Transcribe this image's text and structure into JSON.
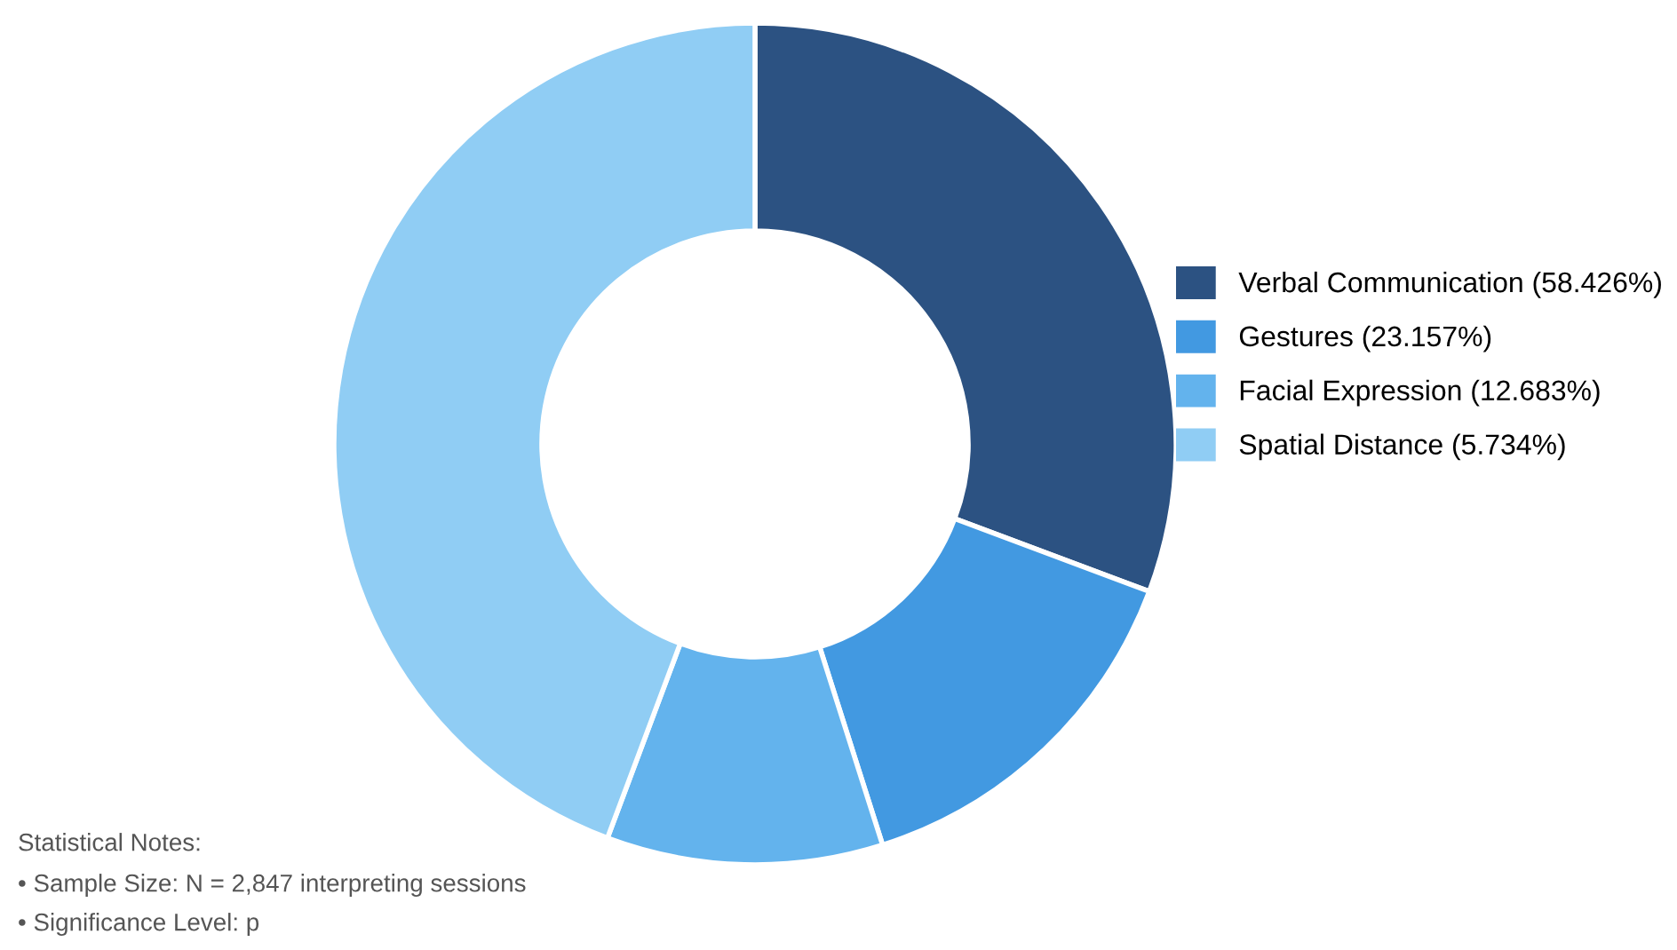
{
  "chart_data": {
    "type": "donut",
    "categories": [
      "Verbal Communication (58.426%)",
      "Gestures (23.157%)",
      "Facial Expression (12.683%)",
      "Spatial Distance (5.734%)"
    ],
    "values": [
      30.7,
      14.4,
      10.6,
      44.3
    ],
    "colors": [
      "#2c5282",
      "#4299e1",
      "#63b3ed",
      "#90cdf4"
    ],
    "legend": "right",
    "annotations": [
      "Statistical Notes:",
      "• Sample Size: N = 2,847 interpreting sessions",
      "• Significance Level: p"
    ]
  }
}
